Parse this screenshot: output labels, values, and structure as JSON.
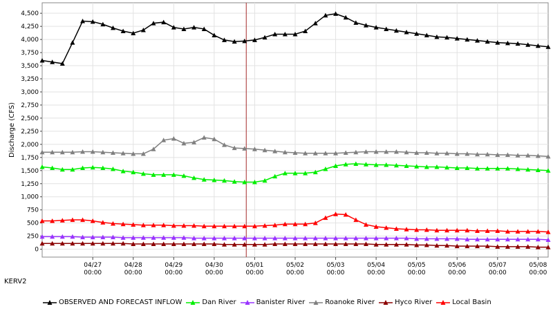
{
  "station": "KERV2",
  "chart_data": {
    "type": "line",
    "title": "",
    "xlabel": "",
    "ylabel": "Discharge (CFS)",
    "ylim": [
      -150,
      4700
    ],
    "yticks": [
      0,
      250,
      500,
      750,
      1000,
      1250,
      1500,
      1750,
      2000,
      2250,
      2500,
      2750,
      3000,
      3250,
      3500,
      3750,
      4000,
      4250,
      4500
    ],
    "ytick_labels": [
      "0",
      "250",
      "500",
      "750",
      "1,000",
      "1,250",
      "1,500",
      "1,750",
      "2,000",
      "2,250",
      "2,500",
      "2,750",
      "3,000",
      "3,250",
      "3,500",
      "3,750",
      "4,000",
      "4,250",
      "4,500"
    ],
    "x_start": "04/26 18:00",
    "x_step_hours": 6,
    "xlim_hours": [
      0,
      300
    ],
    "xticks": [
      {
        "hours": 30,
        "date": "04/27",
        "time": "00:00"
      },
      {
        "hours": 54,
        "date": "04/28",
        "time": "00:00"
      },
      {
        "hours": 78,
        "date": "04/29",
        "time": "00:00"
      },
      {
        "hours": 102,
        "date": "04/30",
        "time": "00:00"
      },
      {
        "hours": 126,
        "date": "05/01",
        "time": "00:00"
      },
      {
        "hours": 150,
        "date": "05/02",
        "time": "00:00"
      },
      {
        "hours": 174,
        "date": "05/03",
        "time": "00:00"
      },
      {
        "hours": 198,
        "date": "05/04",
        "time": "00:00"
      },
      {
        "hours": 222,
        "date": "05/05",
        "time": "00:00"
      },
      {
        "hours": 246,
        "date": "05/06",
        "time": "00:00"
      },
      {
        "hours": 270,
        "date": "05/07",
        "time": "00:00"
      },
      {
        "hours": 294,
        "date": "05/08",
        "time": "00:00"
      }
    ],
    "now_marker_hours": 121,
    "grid": true,
    "legend_position": "bottom",
    "series": [
      {
        "name": "OBSERVED AND FORECAST INFLOW",
        "color": "#000000",
        "values": [
          3600,
          3570,
          3540,
          3940,
          4350,
          4340,
          4290,
          4220,
          4160,
          4120,
          4180,
          4310,
          4330,
          4230,
          4200,
          4230,
          4200,
          4080,
          3990,
          3960,
          3970,
          3990,
          4040,
          4100,
          4100,
          4100,
          4160,
          4310,
          4460,
          4490,
          4420,
          4320,
          4270,
          4230,
          4200,
          4170,
          4140,
          4110,
          4080,
          4050,
          4040,
          4020,
          4000,
          3980,
          3960,
          3940,
          3930,
          3920,
          3900,
          3880,
          3860
        ]
      },
      {
        "name": "Dan River",
        "color": "#00ee00",
        "values": [
          1570,
          1550,
          1520,
          1520,
          1550,
          1560,
          1550,
          1530,
          1490,
          1470,
          1440,
          1420,
          1420,
          1420,
          1400,
          1360,
          1330,
          1320,
          1310,
          1290,
          1280,
          1280,
          1310,
          1390,
          1450,
          1450,
          1450,
          1470,
          1530,
          1590,
          1620,
          1630,
          1620,
          1610,
          1610,
          1600,
          1590,
          1580,
          1570,
          1570,
          1560,
          1550,
          1550,
          1540,
          1540,
          1540,
          1540,
          1530,
          1520,
          1510,
          1500
        ]
      },
      {
        "name": "Banister River",
        "color": "#9933ff",
        "values": [
          240,
          240,
          240,
          240,
          230,
          230,
          230,
          230,
          220,
          220,
          220,
          220,
          220,
          220,
          220,
          210,
          210,
          210,
          210,
          210,
          210,
          210,
          210,
          210,
          210,
          210,
          210,
          210,
          210,
          210,
          210,
          210,
          210,
          210,
          210,
          210,
          210,
          200,
          200,
          200,
          200,
          200,
          190,
          190,
          190,
          190,
          190,
          190,
          190,
          190,
          180
        ]
      },
      {
        "name": "Roanoke River",
        "color": "#808080",
        "values": [
          1850,
          1850,
          1850,
          1850,
          1860,
          1860,
          1850,
          1840,
          1830,
          1820,
          1820,
          1910,
          2080,
          2110,
          2020,
          2040,
          2130,
          2100,
          1990,
          1930,
          1920,
          1910,
          1890,
          1870,
          1850,
          1840,
          1830,
          1830,
          1830,
          1830,
          1840,
          1850,
          1860,
          1860,
          1860,
          1860,
          1850,
          1840,
          1840,
          1830,
          1830,
          1820,
          1820,
          1810,
          1810,
          1800,
          1800,
          1790,
          1790,
          1780,
          1770
        ]
      },
      {
        "name": "Hyco River",
        "color": "#8b0000",
        "values": [
          110,
          110,
          110,
          110,
          110,
          110,
          110,
          110,
          110,
          100,
          100,
          100,
          100,
          100,
          100,
          100,
          100,
          100,
          90,
          90,
          90,
          90,
          90,
          100,
          100,
          100,
          100,
          100,
          100,
          100,
          100,
          100,
          100,
          90,
          90,
          90,
          90,
          80,
          80,
          70,
          70,
          60,
          60,
          60,
          60,
          50,
          50,
          50,
          50,
          40,
          40
        ]
      },
      {
        "name": "Local Basin",
        "color": "#ff0000",
        "values": [
          540,
          540,
          550,
          560,
          560,
          540,
          510,
          490,
          480,
          470,
          460,
          460,
          460,
          450,
          450,
          450,
          440,
          440,
          440,
          440,
          440,
          440,
          450,
          460,
          480,
          480,
          480,
          500,
          600,
          670,
          660,
          560,
          470,
          430,
          410,
          390,
          380,
          370,
          370,
          360,
          360,
          360,
          360,
          350,
          350,
          350,
          340,
          340,
          340,
          340,
          330
        ]
      }
    ]
  }
}
